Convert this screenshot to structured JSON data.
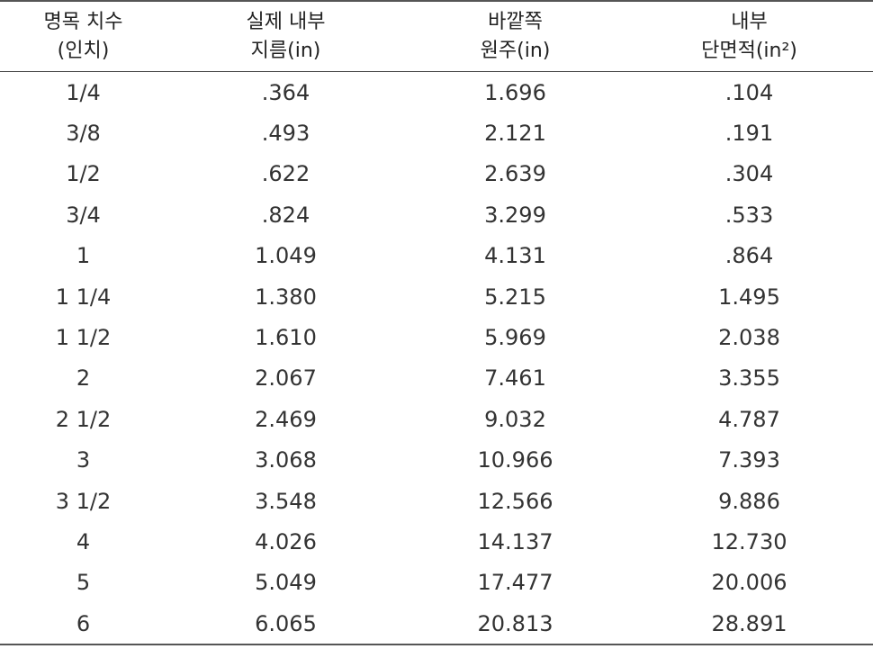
{
  "table": {
    "headers": [
      {
        "line1": "명목 치수",
        "line2": "(인치)"
      },
      {
        "line1": "실제 내부",
        "line2": "지름(in)"
      },
      {
        "line1": "바깥쪽",
        "line2": "원주(in)"
      },
      {
        "line1": "내부",
        "line2": "단면적(in²)"
      }
    ],
    "rows": [
      [
        "1/4",
        ".364",
        "1.696",
        ".104"
      ],
      [
        "3/8",
        ".493",
        "2.121",
        ".191"
      ],
      [
        "1/2",
        ".622",
        "2.639",
        ".304"
      ],
      [
        "3/4",
        ".824",
        "3.299",
        ".533"
      ],
      [
        "1",
        "1.049",
        "4.131",
        ".864"
      ],
      [
        "1 1/4",
        "1.380",
        "5.215",
        "1.495"
      ],
      [
        "1 1/2",
        "1.610",
        "5.969",
        "2.038"
      ],
      [
        "2",
        "2.067",
        "7.461",
        "3.355"
      ],
      [
        "2 1/2",
        "2.469",
        "9.032",
        "4.787"
      ],
      [
        "3",
        "3.068",
        "10.966",
        "7.393"
      ],
      [
        "3 1/2",
        "3.548",
        "12.566",
        "9.886"
      ],
      [
        "4",
        "4.026",
        "14.137",
        "12.730"
      ],
      [
        "5",
        "5.049",
        "17.477",
        "20.006"
      ],
      [
        "6",
        "6.065",
        "20.813",
        "28.891"
      ]
    ]
  }
}
